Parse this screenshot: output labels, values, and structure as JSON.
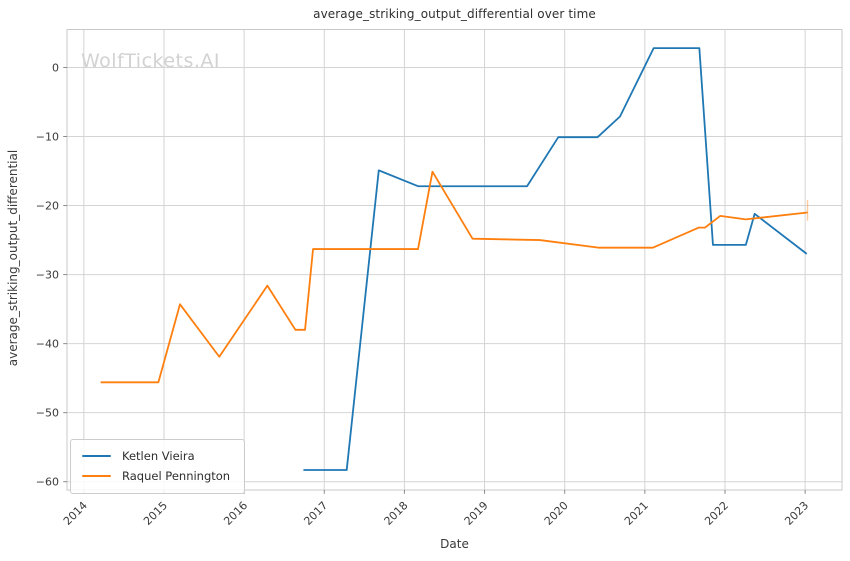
{
  "watermark": "WolfTickets.AI",
  "chart_data": {
    "type": "line",
    "title": "average_striking_output_differential over time",
    "xlabel": "Date",
    "ylabel": "average_striking_output_differential",
    "xlim": [
      2013.79,
      2023.46
    ],
    "ylim": [
      -61.2,
      5.5
    ],
    "grid": true,
    "legend_position": "lower-left",
    "x_ticks": [
      {
        "value": 2014,
        "label": "2014"
      },
      {
        "value": 2015,
        "label": "2015"
      },
      {
        "value": 2016,
        "label": "2016"
      },
      {
        "value": 2017,
        "label": "2017"
      },
      {
        "value": 2018,
        "label": "2018"
      },
      {
        "value": 2019,
        "label": "2019"
      },
      {
        "value": 2020,
        "label": "2020"
      },
      {
        "value": 2021,
        "label": "2021"
      },
      {
        "value": 2022,
        "label": "2022"
      },
      {
        "value": 2023,
        "label": "2023"
      }
    ],
    "y_ticks": [
      {
        "value": 0,
        "label": "0"
      },
      {
        "value": -10,
        "label": "−10"
      },
      {
        "value": -20,
        "label": "−20"
      },
      {
        "value": -30,
        "label": "−30"
      },
      {
        "value": -40,
        "label": "−40"
      },
      {
        "value": -50,
        "label": "−50"
      },
      {
        "value": -60,
        "label": "−60"
      }
    ],
    "series": [
      {
        "name": "Ketlen Vieira",
        "color": "#1f77b4",
        "points": [
          [
            2016.74,
            -58.3
          ],
          [
            2017.28,
            -58.3
          ],
          [
            2017.68,
            -14.9
          ],
          [
            2018.17,
            -17.2
          ],
          [
            2019.53,
            -17.2
          ],
          [
            2019.92,
            -10.1
          ],
          [
            2020.41,
            -10.1
          ],
          [
            2020.69,
            -7.1
          ],
          [
            2021.11,
            2.8
          ],
          [
            2021.68,
            2.8
          ],
          [
            2021.85,
            -25.7
          ],
          [
            2022.26,
            -25.7
          ],
          [
            2022.37,
            -21.2
          ],
          [
            2023.02,
            -27.0
          ]
        ]
      },
      {
        "name": "Raquel Pennington",
        "color": "#ff7f0e",
        "points": [
          [
            2014.21,
            -45.6
          ],
          [
            2014.93,
            -45.6
          ],
          [
            2015.2,
            -34.3
          ],
          [
            2015.69,
            -41.9
          ],
          [
            2016.29,
            -31.6
          ],
          [
            2016.64,
            -38.0
          ],
          [
            2016.76,
            -38.0
          ],
          [
            2016.86,
            -26.3
          ],
          [
            2018.17,
            -26.3
          ],
          [
            2018.35,
            -15.1
          ],
          [
            2018.85,
            -24.8
          ],
          [
            2019.69,
            -25.0
          ],
          [
            2020.42,
            -26.1
          ],
          [
            2021.1,
            -26.1
          ],
          [
            2021.67,
            -23.2
          ],
          [
            2021.75,
            -23.2
          ],
          [
            2021.94,
            -21.5
          ],
          [
            2022.26,
            -22.0
          ],
          [
            2023.03,
            -21.0
          ]
        ]
      }
    ],
    "annotations": [
      {
        "type": "faint-vertical-tick",
        "x": 2023.03,
        "y1": -19.2,
        "y2": -22.2,
        "color": "#ff7f0e",
        "opacity": 0.4
      }
    ],
    "style": {
      "grid_color": "#d4d4d4",
      "spine_color": "#c9c9c9",
      "tick_mark_color": "#8a8a8a",
      "tick_label_color": "#3a3a3a",
      "line_width": 1.8
    }
  }
}
